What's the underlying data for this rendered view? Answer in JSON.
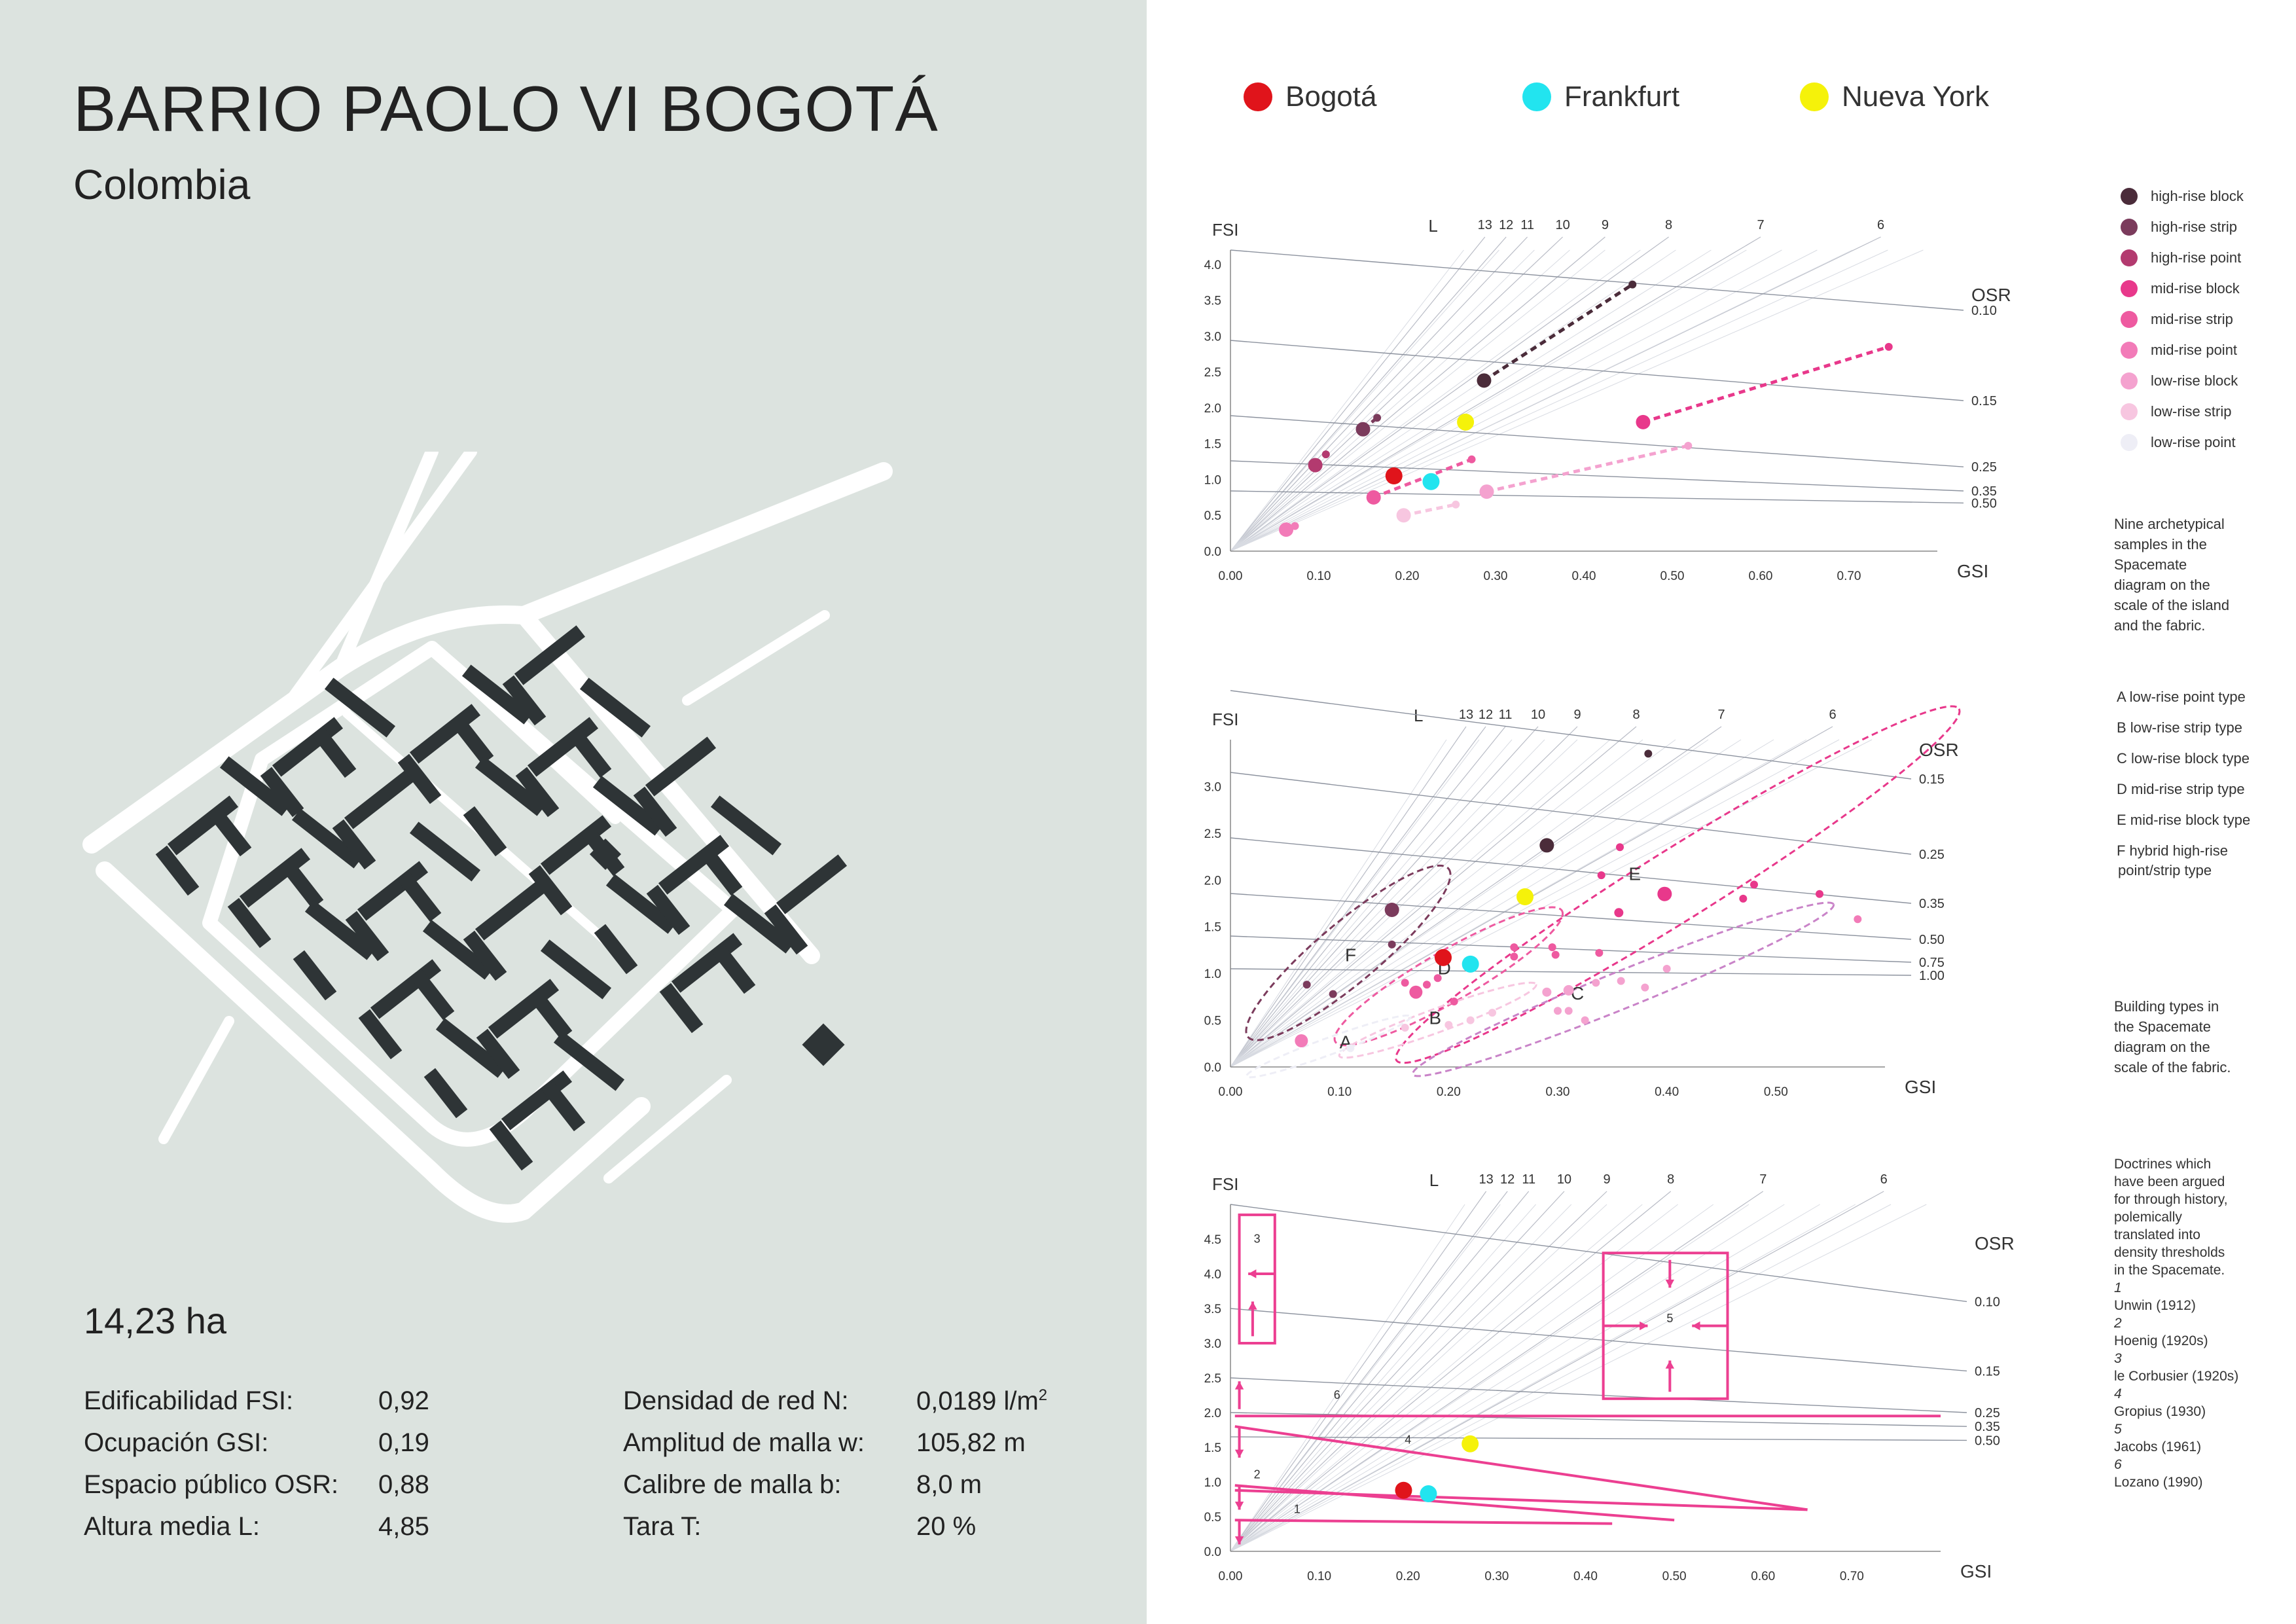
{
  "header": {
    "title": "BARRIO PAOLO VI BOGOTÁ",
    "subtitle": "Colombia"
  },
  "area": "14,23 ha",
  "stats_left": [
    {
      "label": "Edificabilidad FSI:",
      "value": "0,92"
    },
    {
      "label": "Ocupación GSI:",
      "value": "0,19"
    },
    {
      "label": "Espacio público OSR:",
      "value": "0,88"
    },
    {
      "label": "Altura media L:",
      "value": "4,85"
    }
  ],
  "stats_right": [
    {
      "label": "Densidad de red N:",
      "value": "0,0189",
      "unit": "l/m",
      "sup": "2"
    },
    {
      "label": "Amplitud de malla w:",
      "value": "105,82 m"
    },
    {
      "label": "Calibre de malla b:",
      "value": "8,0 m"
    },
    {
      "label": "Tara T:",
      "value": "20 %"
    }
  ],
  "legend": [
    {
      "label": "Bogotá",
      "color": "#e0141b"
    },
    {
      "label": "Frankfurt",
      "color": "#22e4ef"
    },
    {
      "label": "Nueva York",
      "color": "#f5f20a"
    }
  ],
  "colors": {
    "pink": "#ec3f91",
    "building": "#2e3436",
    "road": "#ffffff",
    "background": "#dce3df"
  },
  "chart_data": [
    {
      "type": "scatter",
      "xlabel": "GSI",
      "ylabel": "FSI",
      "xlim": [
        0,
        0.8
      ],
      "ylim": [
        0,
        4.2
      ],
      "xticks": [
        "0.00",
        "0.10",
        "0.20",
        "0.30",
        "0.40",
        "0.50",
        "0.60",
        "0.70"
      ],
      "yticks": [
        "0.0",
        "0.5",
        "1.0",
        "1.5",
        "2.0",
        "2.5",
        "3.0",
        "3.5",
        "4.0"
      ],
      "L_label": "L",
      "L_values": [
        "13",
        "12",
        "11",
        "10",
        "9",
        "8",
        "7",
        "6"
      ],
      "OSR_label": "OSR",
      "OSR_values": [
        "0.10",
        "0.15",
        "0.25",
        "0.35",
        "0.50"
      ],
      "series": [
        {
          "name": "high-rise block",
          "color": "#4b2c3a"
        },
        {
          "name": "high-rise strip",
          "color": "#7b3b5c"
        },
        {
          "name": "high-rise point",
          "color": "#b33a6f"
        },
        {
          "name": "mid-rise block",
          "color": "#e8388b"
        },
        {
          "name": "mid-rise strip",
          "color": "#ee5aa0"
        },
        {
          "name": "mid-rise point",
          "color": "#f27bb8"
        },
        {
          "name": "low-rise block",
          "color": "#f4a2cf"
        },
        {
          "name": "low-rise strip",
          "color": "#f7c6e0"
        },
        {
          "name": "low-rise point",
          "color": "#eeeef6"
        }
      ],
      "points": [
        {
          "x": 0.287,
          "y": 2.38,
          "c": "#4b2c3a",
          "r": 11
        },
        {
          "x": 0.455,
          "y": 3.72,
          "c": "#4b2c3a",
          "r": 6
        },
        {
          "x": 0.15,
          "y": 1.7,
          "c": "#7b3b5c",
          "r": 11
        },
        {
          "x": 0.166,
          "y": 1.86,
          "c": "#7b3b5c",
          "r": 6
        },
        {
          "x": 0.096,
          "y": 1.2,
          "c": "#b33a6f",
          "r": 11
        },
        {
          "x": 0.108,
          "y": 1.35,
          "c": "#b33a6f",
          "r": 6
        },
        {
          "x": 0.467,
          "y": 1.8,
          "c": "#e8388b",
          "r": 11
        },
        {
          "x": 0.745,
          "y": 2.85,
          "c": "#e8388b",
          "r": 6
        },
        {
          "x": 0.162,
          "y": 0.75,
          "c": "#ee5aa0",
          "r": 11
        },
        {
          "x": 0.273,
          "y": 1.28,
          "c": "#ee5aa0",
          "r": 6
        },
        {
          "x": 0.063,
          "y": 0.3,
          "c": "#f27bb8",
          "r": 11
        },
        {
          "x": 0.073,
          "y": 0.35,
          "c": "#f27bb8",
          "r": 6
        },
        {
          "x": 0.29,
          "y": 0.83,
          "c": "#f4a2cf",
          "r": 11
        },
        {
          "x": 0.518,
          "y": 1.47,
          "c": "#f4a2cf",
          "r": 6
        },
        {
          "x": 0.196,
          "y": 0.5,
          "c": "#f7c6e0",
          "r": 11
        },
        {
          "x": 0.255,
          "y": 0.65,
          "c": "#f7c6e0",
          "r": 6
        },
        {
          "x": 0.185,
          "y": 1.05,
          "c": "#e0141b",
          "r": 13
        },
        {
          "x": 0.227,
          "y": 0.97,
          "c": "#22e4ef",
          "r": 13
        },
        {
          "x": 0.266,
          "y": 1.8,
          "c": "#f5f20a",
          "r": 13
        }
      ],
      "trends": [
        {
          "from": [
            0.287,
            2.38
          ],
          "to": [
            0.455,
            3.72
          ],
          "color": "#4b2c3a"
        },
        {
          "from": [
            0.15,
            1.7
          ],
          "to": [
            0.166,
            1.86
          ],
          "color": "#7b3b5c"
        },
        {
          "from": [
            0.467,
            1.8
          ],
          "to": [
            0.745,
            2.85
          ],
          "color": "#e8388b"
        },
        {
          "from": [
            0.162,
            0.75
          ],
          "to": [
            0.273,
            1.28
          ],
          "color": "#ee5aa0"
        },
        {
          "from": [
            0.29,
            0.83
          ],
          "to": [
            0.518,
            1.47
          ],
          "color": "#f4a2cf"
        },
        {
          "from": [
            0.196,
            0.5
          ],
          "to": [
            0.255,
            0.65
          ],
          "color": "#f7c6e0"
        }
      ]
    },
    {
      "type": "scatter",
      "xlabel": "GSI",
      "ylabel": "FSI",
      "xlim": [
        0,
        0.6
      ],
      "ylim": [
        0,
        3.5
      ],
      "xticks": [
        "0.00",
        "0.10",
        "0.20",
        "0.30",
        "0.40",
        "0.50"
      ],
      "yticks": [
        "0.0",
        "0.5",
        "1.0",
        "1.5",
        "2.0",
        "2.5",
        "3.0"
      ],
      "L_label": "L",
      "L_values": [
        "13",
        "12",
        "11",
        "10",
        "9",
        "8",
        "7",
        "6"
      ],
      "OSR_label": "OSR",
      "OSR_values": [
        "0.15",
        "0.25",
        "0.35",
        "0.50",
        "0.75",
        "1.00"
      ],
      "groups": [
        "A",
        "B",
        "C",
        "D",
        "E",
        "F"
      ],
      "points": [
        {
          "x": 0.383,
          "y": 3.35,
          "c": "#4b2c3a",
          "r": 6
        },
        {
          "x": 0.29,
          "y": 2.37,
          "c": "#4b2c3a",
          "r": 11
        },
        {
          "x": 0.148,
          "y": 1.68,
          "c": "#7b3b5c",
          "r": 11
        },
        {
          "x": 0.148,
          "y": 1.31,
          "c": "#7b3b5c",
          "r": 6
        },
        {
          "x": 0.07,
          "y": 0.88,
          "c": "#7b3b5c",
          "r": 6
        },
        {
          "x": 0.094,
          "y": 0.78,
          "c": "#7b3b5c",
          "r": 6
        },
        {
          "x": 0.398,
          "y": 1.85,
          "c": "#e8388b",
          "r": 11
        },
        {
          "x": 0.356,
          "y": 1.65,
          "c": "#e8388b",
          "r": 7
        },
        {
          "x": 0.34,
          "y": 2.05,
          "c": "#e8388b",
          "r": 6
        },
        {
          "x": 0.357,
          "y": 2.35,
          "c": "#e8388b",
          "r": 6
        },
        {
          "x": 0.48,
          "y": 1.95,
          "c": "#e8388b",
          "r": 6
        },
        {
          "x": 0.47,
          "y": 1.8,
          "c": "#e8388b",
          "r": 6
        },
        {
          "x": 0.54,
          "y": 1.85,
          "c": "#e8388b",
          "r": 6
        },
        {
          "x": 0.575,
          "y": 1.58,
          "c": "#f27bb8",
          "r": 6
        },
        {
          "x": 0.26,
          "y": 1.28,
          "c": "#ee5aa0",
          "r": 6
        },
        {
          "x": 0.26,
          "y": 1.18,
          "c": "#ee5aa0",
          "r": 6
        },
        {
          "x": 0.295,
          "y": 1.28,
          "c": "#ee5aa0",
          "r": 6
        },
        {
          "x": 0.298,
          "y": 1.2,
          "c": "#ee5aa0",
          "r": 6
        },
        {
          "x": 0.338,
          "y": 1.22,
          "c": "#ee5aa0",
          "r": 6
        },
        {
          "x": 0.17,
          "y": 0.8,
          "c": "#ee5aa0",
          "r": 10
        },
        {
          "x": 0.16,
          "y": 0.9,
          "c": "#ee5aa0",
          "r": 6
        },
        {
          "x": 0.18,
          "y": 0.88,
          "c": "#ee5aa0",
          "r": 6
        },
        {
          "x": 0.205,
          "y": 0.7,
          "c": "#ee5aa0",
          "r": 6
        },
        {
          "x": 0.19,
          "y": 0.95,
          "c": "#ee5aa0",
          "r": 6
        },
        {
          "x": 0.065,
          "y": 0.28,
          "c": "#f27bb8",
          "r": 10
        },
        {
          "x": 0.31,
          "y": 0.82,
          "c": "#f4a2cf",
          "r": 8
        },
        {
          "x": 0.29,
          "y": 0.8,
          "c": "#f4a2cf",
          "r": 7
        },
        {
          "x": 0.335,
          "y": 0.9,
          "c": "#f4a2cf",
          "r": 6
        },
        {
          "x": 0.358,
          "y": 0.92,
          "c": "#f4a2cf",
          "r": 6
        },
        {
          "x": 0.38,
          "y": 0.85,
          "c": "#f4a2cf",
          "r": 6
        },
        {
          "x": 0.4,
          "y": 1.05,
          "c": "#f4a2cf",
          "r": 6
        },
        {
          "x": 0.325,
          "y": 0.5,
          "c": "#f4a2cf",
          "r": 6
        },
        {
          "x": 0.3,
          "y": 0.6,
          "c": "#f4a2cf",
          "r": 6
        },
        {
          "x": 0.31,
          "y": 0.6,
          "c": "#f4a2cf",
          "r": 6
        },
        {
          "x": 0.22,
          "y": 0.5,
          "c": "#f7c6e0",
          "r": 6
        },
        {
          "x": 0.24,
          "y": 0.58,
          "c": "#f7c6e0",
          "r": 6
        },
        {
          "x": 0.2,
          "y": 0.45,
          "c": "#f7c6e0",
          "r": 6
        },
        {
          "x": 0.16,
          "y": 0.42,
          "c": "#f7c6e0",
          "r": 6
        },
        {
          "x": 0.11,
          "y": 0.2,
          "c": "#eeeef6",
          "r": 6
        },
        {
          "x": 0.195,
          "y": 1.17,
          "c": "#e0141b",
          "r": 13
        },
        {
          "x": 0.22,
          "y": 1.1,
          "c": "#22e4ef",
          "r": 13
        },
        {
          "x": 0.27,
          "y": 1.82,
          "c": "#f5f20a",
          "r": 13
        }
      ],
      "ellipses": [
        {
          "label": "F",
          "cx": 0.108,
          "cy": 1.22,
          "rx": 0.075,
          "ry": 0.36,
          "rot": -40,
          "color": "#7b3b5c",
          "lx": 0.105,
          "ly": 1.13
        },
        {
          "label": "D",
          "cx": 0.2,
          "cy": 0.97,
          "rx": 0.075,
          "ry": 0.3,
          "rot": -30,
          "color": "#ee5aa0",
          "lx": 0.19,
          "ly": 0.99
        },
        {
          "label": "E",
          "cx": 0.41,
          "cy": 1.95,
          "rx": 0.19,
          "ry": 0.42,
          "rot": -32,
          "color": "#e8388b",
          "lx": 0.365,
          "ly": 2.0
        },
        {
          "label": "C",
          "cx": 0.36,
          "cy": 0.83,
          "rx": 0.13,
          "ry": 0.22,
          "rot": -22,
          "color": "#c983c8",
          "lx": 0.312,
          "ly": 0.72
        },
        {
          "label": "B",
          "cx": 0.19,
          "cy": 0.5,
          "rx": 0.06,
          "ry": 0.14,
          "rot": -20,
          "color": "#f7c6e0",
          "lx": 0.182,
          "ly": 0.46
        },
        {
          "label": "A",
          "cx": 0.09,
          "cy": 0.22,
          "rx": 0.05,
          "ry": 0.1,
          "rot": -20,
          "color": "#eeeef6",
          "lx": 0.1,
          "ly": 0.2
        }
      ]
    },
    {
      "type": "scatter",
      "xlabel": "GSI",
      "ylabel": "FSI",
      "xlim": [
        0,
        0.8
      ],
      "ylim": [
        0,
        5.0
      ],
      "xticks": [
        "0.00",
        "0.10",
        "0.20",
        "0.30",
        "0.40",
        "0.50",
        "0.60",
        "0.70"
      ],
      "yticks": [
        "0.0",
        "0.5",
        "1.0",
        "1.5",
        "2.0",
        "2.5",
        "3.0",
        "3.5",
        "4.0",
        "4.5"
      ],
      "L_label": "L",
      "L_values": [
        "13",
        "12",
        "11",
        "10",
        "9",
        "8",
        "7",
        "6"
      ],
      "OSR_label": "OSR",
      "OSR_values": [
        "0.10",
        "0.15",
        "0.25",
        "0.35",
        "0.50"
      ],
      "doctrine_numbers": [
        "1",
        "2",
        "3",
        "4",
        "5",
        "6"
      ],
      "points": [
        {
          "x": 0.195,
          "y": 0.88,
          "c": "#e0141b",
          "r": 13
        },
        {
          "x": 0.223,
          "y": 0.83,
          "c": "#22e4ef",
          "r": 13
        },
        {
          "x": 0.27,
          "y": 1.55,
          "c": "#f5f20a",
          "r": 13
        }
      ],
      "doctrine_lines": [
        {
          "from": [
            0.005,
            0.45
          ],
          "to": [
            0.43,
            0.4
          ]
        },
        {
          "from": [
            0.005,
            0.95
          ],
          "to": [
            0.5,
            0.45
          ]
        },
        {
          "from": [
            0.005,
            0.88
          ],
          "to": [
            0.65,
            0.6
          ]
        },
        {
          "from": [
            0.005,
            1.8
          ],
          "to": [
            0.65,
            0.6
          ]
        },
        {
          "from": [
            0.005,
            1.95
          ],
          "to": [
            0.8,
            1.95
          ]
        }
      ],
      "doctrine_labels": [
        {
          "n": "1",
          "x": 0.075,
          "y": 0.55
        },
        {
          "n": "2",
          "x": 0.03,
          "y": 1.05
        },
        {
          "n": "3",
          "x": 0.03,
          "y": 4.45
        },
        {
          "n": "4",
          "x": 0.2,
          "y": 1.55
        },
        {
          "n": "5",
          "x": 0.495,
          "y": 3.3
        },
        {
          "n": "6",
          "x": 0.12,
          "y": 2.2
        }
      ]
    }
  ],
  "side": {
    "caption1": [
      "Nine archetypical",
      "samples in the",
      "Spacemate",
      "diagram on the",
      "scale of the island",
      "and the fabric."
    ],
    "types": [
      "A  low-rise point type",
      "B  low-rise strip type",
      "C  low-rise block type",
      "D  mid-rise strip type",
      "E  mid-rise block type",
      "F  hybrid high-rise",
      "point/strip type"
    ],
    "caption2": [
      "Building types in",
      "the Spacemate",
      "diagram on the",
      "scale of the fabric."
    ],
    "doctrines": [
      "Doctrines which",
      "have been argued",
      "for through history,",
      "polemically",
      "translated into",
      "density thresholds",
      "in the Spacemate.",
      "1",
      "Unwin (1912)",
      "2",
      "Hoenig (1920s)",
      "3",
      "le Corbusier (1920s)",
      "4",
      "Gropius (1930)",
      "5",
      "Jacobs (1961)",
      "6",
      "Lozano (1990)"
    ]
  }
}
